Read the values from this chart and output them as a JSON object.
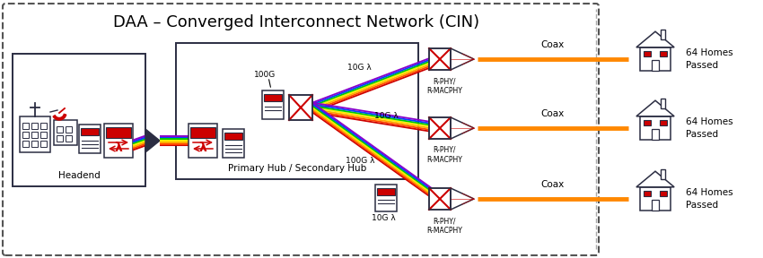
{
  "title": "DAA – Converged Interconnect Network (CIN)",
  "title_fontsize": 13,
  "background_color": "#ffffff",
  "headend_label": "Headend",
  "hub_label": "Primary Hub / Secondary Hub",
  "fiber_colors": [
    "#cc0000",
    "#ff4400",
    "#ffaa00",
    "#ffee00",
    "#00cc00",
    "#0044ff",
    "#8800cc"
  ],
  "coax_color": "#ff8800",
  "rphy_label": "R-PHY/\nR-MACPHY",
  "homes_label": "64 Homes\nPassed",
  "coax_label": "Coax",
  "label_100g_top": "100G",
  "label_10g_top": "10G λ",
  "label_10g_mid": "10G λ",
  "label_100g_bot": "100G λ",
  "label_10g_bot": "10G λ",
  "dark_color": "#2b2d42",
  "red_color": "#cc0000",
  "gray_color": "#555555"
}
